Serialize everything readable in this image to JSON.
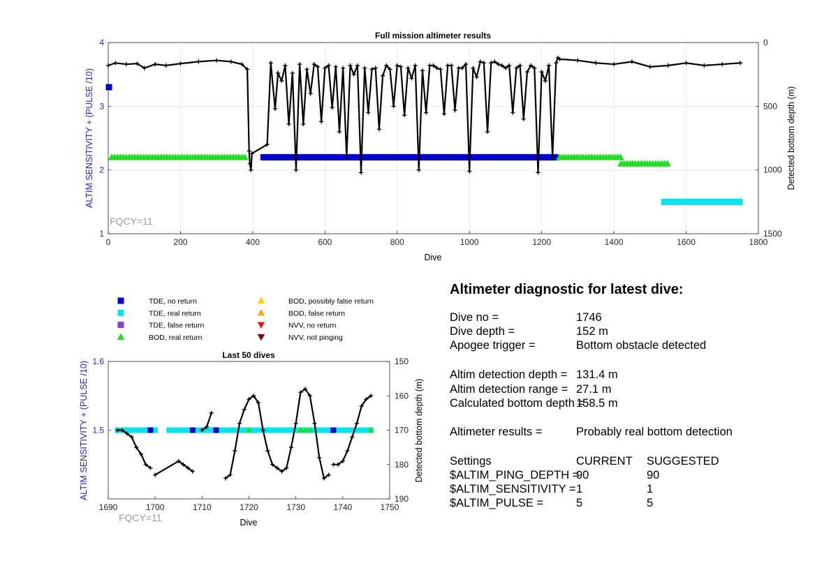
{
  "top_chart_meta": {
    "title": "Full mission altimeter results",
    "xlabel": "Dive",
    "ylabel_left": "ALTIM SENSITIVITY + (PULSE /10)",
    "ylabel_right": "Detected bottom depth (m)",
    "annotation": "FQCY=11"
  },
  "bottom_chart_meta": {
    "title": "Last 50 dives",
    "xlabel": "Dive",
    "ylabel_left": "ALTIM SENSITIVITY + (PULSE /10)",
    "ylabel_right": "Detected bottom depth (m)",
    "annotation": "FQCY=11"
  },
  "legend": [
    {
      "label": "TDE, no return",
      "marker": "square",
      "color": "#0000cc"
    },
    {
      "label": "TDE, real return",
      "marker": "square",
      "color": "#00e5ee"
    },
    {
      "label": "TDE, false return",
      "marker": "square",
      "color": "#8b3fd1"
    },
    {
      "label": "BOD, real return",
      "marker": "triangle-up",
      "color": "#22dd22"
    },
    {
      "label": "BOD, possibly false return",
      "marker": "triangle-up",
      "color": "#ffcc00"
    },
    {
      "label": "BOD, false return",
      "marker": "triangle-up",
      "color": "#f5a623"
    },
    {
      "label": "NVV, no return",
      "marker": "triangle-down",
      "color": "#e8161b"
    },
    {
      "label": "NVV, not pinging",
      "marker": "triangle-down",
      "color": "#7a0a0a"
    }
  ],
  "diagnostic": {
    "title": "Altimeter diagnostic for latest dive:",
    "dive_no_label": "Dive no =",
    "dive_no_value": "1746",
    "dive_depth_label": "Dive depth =",
    "dive_depth_value": "152 m",
    "apogee_label": "Apogee trigger =",
    "apogee_value": "Bottom obstacle detected",
    "detect_depth_label": "Altim detection depth =",
    "detect_depth_value": "131.4 m",
    "detect_range_label": "Altim detection range =",
    "detect_range_value": "27.1 m",
    "bottom_depth_label": "Calculated bottom depth =",
    "bottom_depth_value": "158.5 m",
    "results_label": "Altimeter results =",
    "results_value": "Probably real bottom detection",
    "settings_label": "Settings",
    "current_label": "CURRENT",
    "suggested_label": "SUGGESTED",
    "ping_label": "$ALTIM_PING_DEPTH =",
    "ping_current": "90",
    "ping_suggested": "90",
    "sens_label": "$ALTIM_SENSITIVITY =",
    "sens_current": "1",
    "sens_suggested": "1",
    "pulse_label": "$ALTIM_PULSE =",
    "pulse_current": "5",
    "pulse_suggested": "5"
  },
  "chart_data": [
    {
      "type": "scatter",
      "title": "Full mission altimeter results",
      "xlabel": "Dive",
      "ylabel": "ALTIM SENSITIVITY + (PULSE /10)",
      "y2label": "Detected bottom depth (m)",
      "xlim": [
        0,
        1800
      ],
      "ylim": [
        1,
        4
      ],
      "y2lim": [
        0,
        1500
      ],
      "y2_reversed": true,
      "xticks": [
        0,
        200,
        400,
        600,
        800,
        1000,
        1200,
        1400,
        1600,
        1800
      ],
      "yticks": [
        1,
        2,
        3,
        4
      ],
      "y2ticks": [
        0,
        500,
        1000,
        1500
      ],
      "grid": true,
      "markers": [
        {
          "name": "TDE, no return",
          "x": 2,
          "y": 3.3
        },
        {
          "name": "BOD, real return",
          "x": [
            10,
            380
          ],
          "y": 2.2
        },
        {
          "name": "TDE, no return",
          "x": [
            430,
            1240
          ],
          "y": 2.2
        },
        {
          "name": "BOD, real return",
          "x": [
            1250,
            1420
          ],
          "y": 2.2
        },
        {
          "name": "BOD, real return",
          "x": [
            1420,
            1550
          ],
          "y": 2.1
        },
        {
          "name": "TDE, real return",
          "x": [
            1540,
            1750
          ],
          "y": 1.5
        }
      ],
      "series": [
        {
          "name": "Detected bottom depth",
          "x": [
            0,
            20,
            50,
            80,
            100,
            130,
            160,
            200,
            250,
            300,
            340,
            370,
            385,
            390,
            392,
            395,
            398,
            440,
            450,
            462,
            470,
            480,
            490,
            500,
            510,
            520,
            530,
            540,
            550,
            560,
            570,
            580,
            590,
            600,
            610,
            620,
            630,
            640,
            650,
            660,
            670,
            680,
            690,
            700,
            710,
            720,
            730,
            740,
            750,
            760,
            770,
            780,
            790,
            800,
            810,
            820,
            830,
            840,
            850,
            860,
            870,
            880,
            890,
            900,
            910,
            920,
            930,
            940,
            950,
            960,
            970,
            980,
            990,
            1000,
            1010,
            1020,
            1030,
            1040,
            1050,
            1060,
            1070,
            1080,
            1090,
            1100,
            1110,
            1120,
            1130,
            1140,
            1150,
            1160,
            1170,
            1180,
            1190,
            1200,
            1210,
            1220,
            1230,
            1240,
            1245,
            1250,
            1300,
            1350,
            1400,
            1450,
            1500,
            1550,
            1600,
            1650,
            1700,
            1750
          ],
          "y": [
            180,
            160,
            170,
            165,
            200,
            170,
            180,
            165,
            150,
            140,
            150,
            170,
            210,
            850,
            950,
            1000,
            870,
            800,
            160,
            520,
            240,
            300,
            180,
            640,
            240,
            1000,
            170,
            640,
            210,
            400,
            170,
            190,
            620,
            200,
            180,
            510,
            190,
            700,
            200,
            900,
            180,
            250,
            180,
            1020,
            200,
            550,
            210,
            200,
            680,
            260,
            180,
            210,
            500,
            180,
            190,
            570,
            200,
            280,
            180,
            1000,
            220,
            550,
            180,
            180,
            200,
            210,
            560,
            180,
            180,
            530,
            200,
            200,
            170,
            1010,
            200,
            270,
            150,
            160,
            700,
            160,
            150,
            170,
            180,
            200,
            180,
            550,
            200,
            180,
            600,
            230,
            180,
            200,
            1020,
            230,
            300,
            180,
            900,
            160,
            120,
            130,
            140,
            160,
            170,
            150,
            190,
            180,
            160,
            180,
            170,
            160
          ]
        }
      ]
    },
    {
      "type": "scatter",
      "title": "Last 50 dives",
      "xlabel": "Dive",
      "ylabel": "ALTIM SENSITIVITY + (PULSE /10)",
      "y2label": "Detected bottom depth (m)",
      "xlim": [
        1690,
        1750
      ],
      "ylim": [
        1.4,
        1.6
      ],
      "y2lim": [
        150,
        190
      ],
      "y2_reversed": true,
      "xticks": [
        1690,
        1700,
        1710,
        1720,
        1730,
        1740,
        1750
      ],
      "yticks": [
        1.5,
        1.6
      ],
      "y2ticks": [
        150,
        160,
        170,
        180,
        190
      ],
      "grid": false,
      "markers": [
        {
          "name": "TDE, real return",
          "x": [
            1692,
            1700
          ],
          "y": 1.5
        },
        {
          "name": "TDE, no return",
          "x": 1699,
          "y": 1.5
        },
        {
          "name": "TDE, real return",
          "x": [
            1703,
            1746
          ],
          "y": 1.5
        },
        {
          "name": "TDE, no return",
          "x": [
            1708,
            1713,
            1738
          ],
          "y": 1.5
        },
        {
          "name": "BOD, real return",
          "x": [
            1720,
            1731,
            1732,
            1733,
            1746
          ],
          "y": 1.5
        }
      ],
      "series": [
        {
          "name": "Depth A",
          "x": [
            1692,
            1693,
            1694,
            1695,
            1696,
            1697,
            1698,
            1699
          ],
          "y": [
            170,
            170,
            171,
            172,
            175,
            177,
            180,
            181
          ]
        },
        {
          "name": "Depth B",
          "x": [
            1700,
            1705,
            1706,
            1707,
            1708
          ],
          "y": [
            183,
            179,
            180,
            181,
            182
          ]
        },
        {
          "name": "Depth C",
          "x": [
            1710,
            1711,
            1712
          ],
          "y": [
            170,
            169,
            165
          ]
        },
        {
          "name": "Depth D",
          "x": [
            1715,
            1716,
            1717,
            1718,
            1719,
            1720,
            1721,
            1722,
            1723,
            1724,
            1725,
            1726,
            1727,
            1728,
            1729,
            1730,
            1731,
            1732,
            1733,
            1734,
            1735,
            1736,
            1737
          ],
          "y": [
            184,
            183,
            176,
            168,
            164,
            161,
            160,
            162,
            170,
            176,
            180,
            181,
            182,
            181,
            175,
            168,
            159,
            158,
            160,
            168,
            178,
            184,
            183
          ]
        },
        {
          "name": "Depth E",
          "x": [
            1738,
            1739,
            1740,
            1741,
            1742,
            1743,
            1744,
            1745,
            1746
          ],
          "y": [
            180,
            180,
            179,
            176,
            172,
            168,
            163,
            161,
            160
          ]
        }
      ]
    }
  ]
}
